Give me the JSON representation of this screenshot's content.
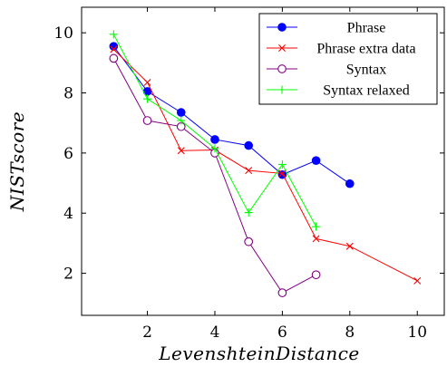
{
  "chart_data": {
    "type": "line",
    "xlabel": "LevenshteinDistance",
    "ylabel": "NISTscore",
    "xlim": [
      0.05,
      10.8
    ],
    "ylim": [
      0.6,
      10.85
    ],
    "xticks": [
      2,
      4,
      6,
      8,
      10
    ],
    "yticks": [
      2,
      4,
      6,
      8,
      10
    ],
    "grid": false,
    "legend_position": "top-right",
    "series": [
      {
        "name": "Phrase",
        "color": "#0000ff",
        "marker": "filled-circle",
        "x": [
          1,
          2,
          3,
          4,
          5,
          6,
          7,
          8
        ],
        "y": [
          9.55,
          8.05,
          7.35,
          6.45,
          6.25,
          5.28,
          5.75,
          4.98
        ]
      },
      {
        "name": "Phrase extra data",
        "color": "#ff0000",
        "marker": "x",
        "x": [
          1,
          2,
          3,
          4,
          5,
          6,
          7,
          8,
          10
        ],
        "y": [
          9.45,
          8.35,
          6.08,
          6.1,
          5.42,
          5.32,
          3.15,
          2.9,
          1.75
        ]
      },
      {
        "name": "Syntax",
        "color": "#800080",
        "marker": "open-circle",
        "x": [
          1,
          2,
          3,
          4,
          5,
          6,
          7
        ],
        "y": [
          9.15,
          7.08,
          6.88,
          6.0,
          3.05,
          1.35,
          1.95
        ]
      },
      {
        "name": "Syntax relaxed",
        "color": "#00ff00",
        "marker": "plus",
        "x": [
          1,
          2,
          3,
          4,
          5,
          6,
          7
        ],
        "y": [
          9.95,
          7.8,
          7.08,
          6.15,
          4.02,
          5.62,
          3.55
        ]
      }
    ]
  }
}
